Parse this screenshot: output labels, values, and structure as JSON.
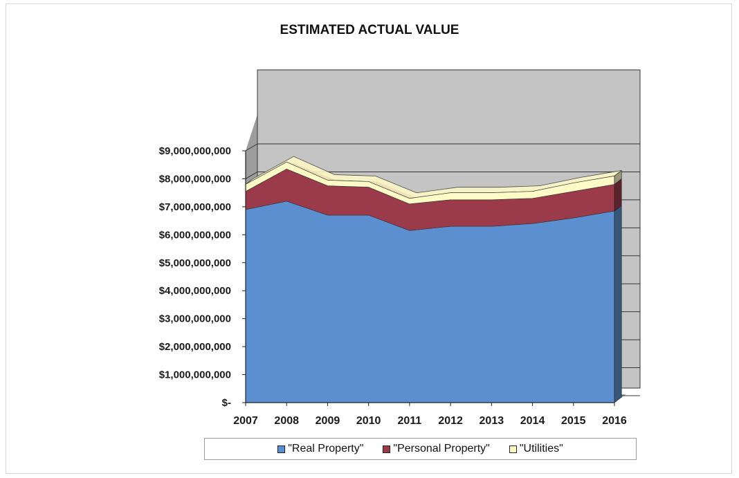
{
  "chart_data": {
    "type": "area",
    "stacked": true,
    "three_d": true,
    "title": "ESTIMATED ACTUAL VALUE",
    "categories": [
      "2007",
      "2008",
      "2009",
      "2010",
      "2011",
      "2012",
      "2013",
      "2014",
      "2015",
      "2016"
    ],
    "ylim": [
      0,
      9000000000
    ],
    "yticks": [
      "$-",
      "$1,000,000,000",
      "$2,000,000,000",
      "$3,000,000,000",
      "$4,000,000,000",
      "$5,000,000,000",
      "$6,000,000,000",
      "$7,000,000,000",
      "$8,000,000,000",
      "$9,000,000,000"
    ],
    "grid": true,
    "legend_position": "bottom",
    "series": [
      {
        "name": "\"Real Property\"",
        "color": "#5b8fcf",
        "values": [
          6900000000,
          7200000000,
          6700000000,
          6700000000,
          6150000000,
          6300000000,
          6300000000,
          6400000000,
          6600000000,
          6850000000
        ]
      },
      {
        "name": "\"Personal Property\"",
        "color": "#9b3a4a",
        "values": [
          650000000,
          1150000000,
          1050000000,
          1000000000,
          950000000,
          950000000,
          950000000,
          900000000,
          950000000,
          950000000
        ]
      },
      {
        "name": "\"Utilities\"",
        "color": "#fffbc7",
        "values": [
          250000000,
          250000000,
          200000000,
          200000000,
          200000000,
          250000000,
          250000000,
          250000000,
          300000000,
          300000000
        ]
      }
    ]
  }
}
